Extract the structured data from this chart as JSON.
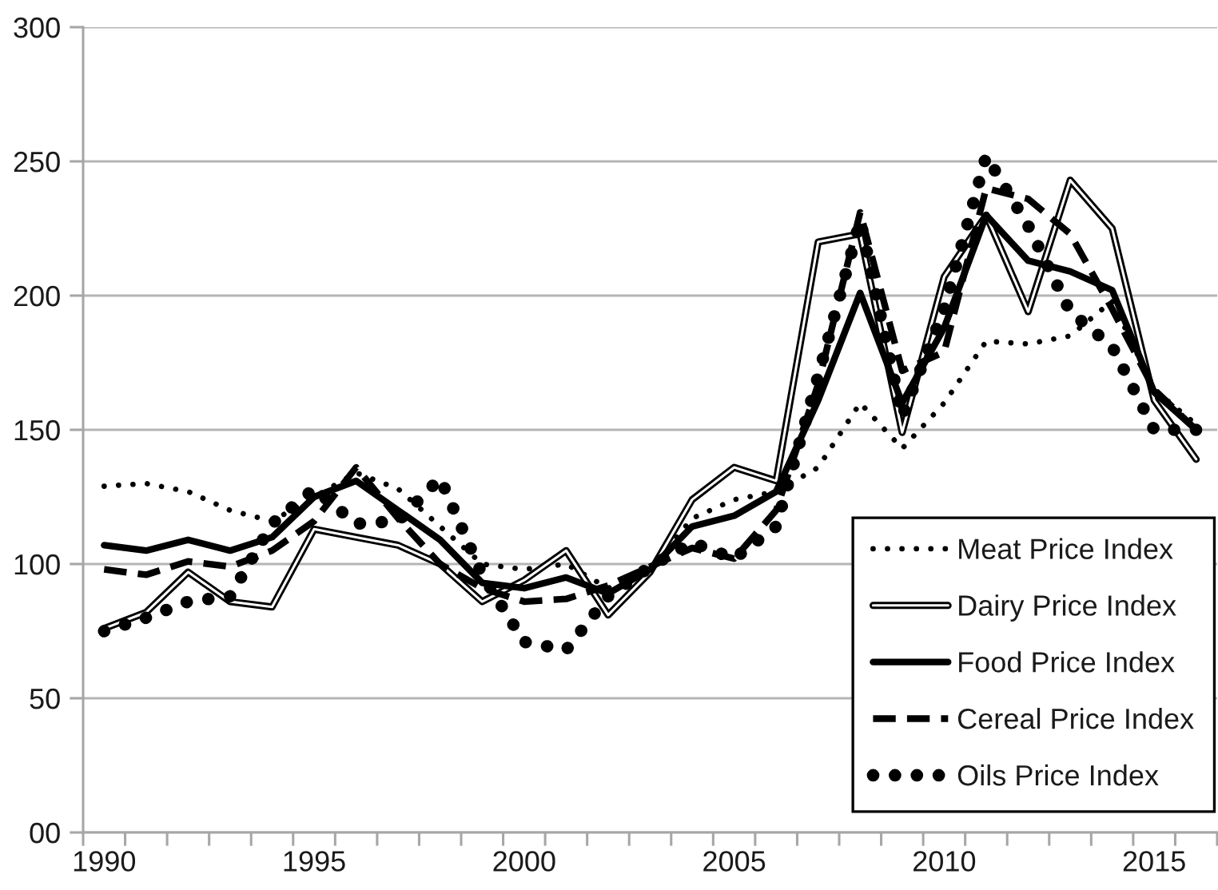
{
  "chart_data": {
    "type": "line",
    "categories": [
      "1990",
      null,
      null,
      null,
      null,
      "1995",
      null,
      null,
      null,
      null,
      "2000",
      null,
      null,
      null,
      null,
      "2005",
      null,
      null,
      null,
      null,
      "2010",
      null,
      null,
      null,
      null,
      "2015",
      null
    ],
    "series": [
      {
        "name": "Meat Price Index",
        "color": "#000000",
        "line_style": "dotted",
        "values": [
          129,
          130,
          127,
          120,
          116,
          125,
          134,
          128,
          114,
          100,
          98,
          100,
          91,
          98,
          117,
          124,
          127,
          136,
          160,
          143,
          160,
          183,
          182,
          185,
          198,
          165,
          152
        ]
      },
      {
        "name": "Dairy Price Index",
        "color": "#000000",
        "line_style": "solid",
        "values": [
          76,
          82,
          97,
          86,
          84,
          113,
          110,
          107,
          100,
          86,
          94,
          105,
          81,
          97,
          124,
          136,
          131,
          220,
          223,
          149,
          207,
          230,
          194,
          243,
          225,
          161,
          139
        ]
      },
      {
        "name": "Food Price Index",
        "color": "#000000",
        "line_style": "solid",
        "values": [
          107,
          105,
          109,
          105,
          110,
          125,
          131,
          120,
          109,
          93,
          91,
          95,
          89,
          98,
          114,
          118,
          127,
          161,
          201,
          160,
          188,
          230,
          213,
          209,
          202,
          164,
          150
        ]
      },
      {
        "name": "Cereal Price Index",
        "color": "#000000",
        "line_style": "dashed",
        "values": [
          98,
          96,
          101,
          99,
          105,
          116,
          136,
          117,
          100,
          91,
          86,
          87,
          92,
          99,
          106,
          102,
          120,
          167,
          231,
          172,
          179,
          240,
          236,
          223,
          195,
          165,
          150
        ]
      },
      {
        "name": "Oils Price Index",
        "color": "#000000",
        "line_style": "dotted",
        "values": [
          75,
          80,
          86,
          88,
          115,
          128,
          115,
          116,
          132,
          96,
          71,
          68,
          88,
          99,
          108,
          102,
          114,
          170,
          228,
          155,
          195,
          252,
          226,
          194,
          181,
          150,
          150
        ]
      }
    ],
    "ylim": [
      0,
      300
    ],
    "yticks": [
      {
        "value": 0,
        "label": "00"
      },
      50,
      100,
      150,
      200,
      250,
      300
    ],
    "grid": "y",
    "legend": "bottom right"
  }
}
